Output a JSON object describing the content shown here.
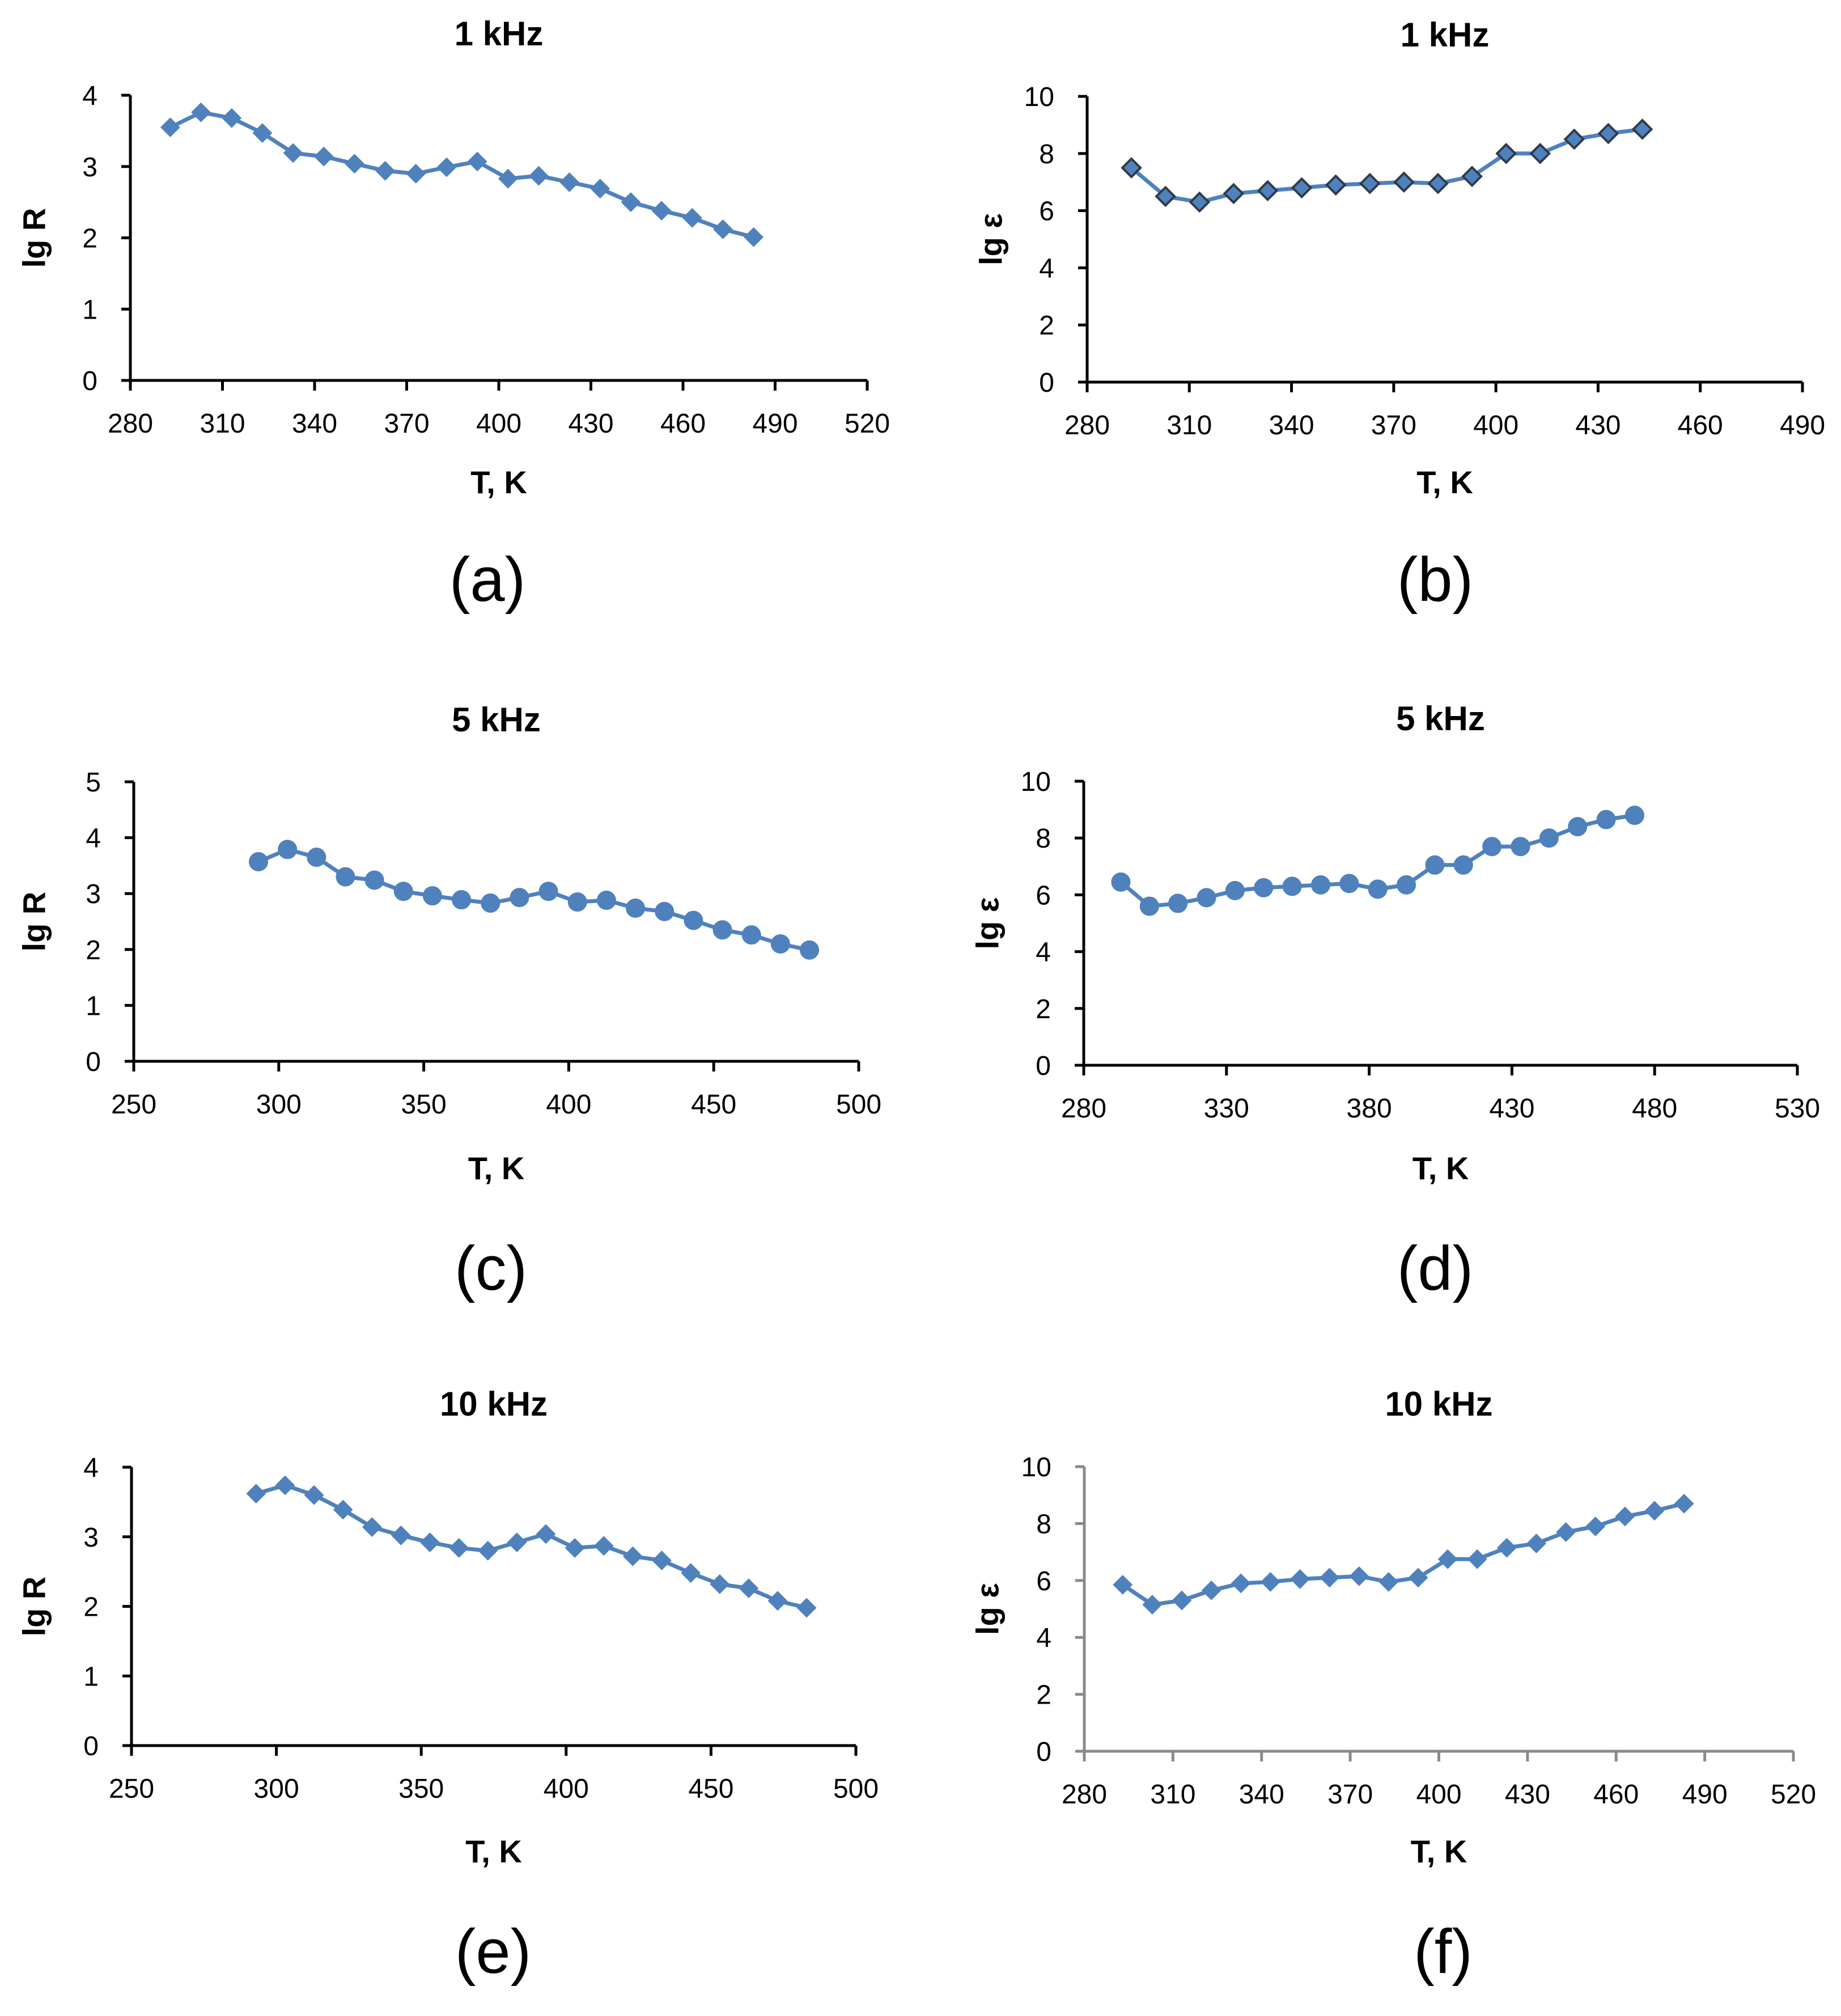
{
  "figure": {
    "series_color": "#4f81bd",
    "marker_outline_dark": "#2f3b4a"
  },
  "chart_data": [
    {
      "type": "line",
      "panel": "(a)",
      "title": "1 kHz",
      "xlabel": "T, K",
      "ylabel": "lg R",
      "xlim": [
        280,
        520
      ],
      "xticks": [
        280,
        310,
        340,
        370,
        400,
        430,
        460,
        490,
        520
      ],
      "ylim": [
        0,
        4
      ],
      "yticks": [
        0,
        1,
        2,
        3,
        4
      ],
      "marker": "diamond",
      "marker_outline": "series",
      "axis_style": "black",
      "series": [
        {
          "name": "lg R",
          "x": [
            293,
            303,
            313,
            323,
            333,
            343,
            353,
            363,
            373,
            383,
            393,
            403,
            413,
            423,
            433,
            443,
            453,
            463,
            473,
            483
          ],
          "y": [
            3.55,
            3.76,
            3.68,
            3.47,
            3.19,
            3.14,
            3.04,
            2.94,
            2.9,
            2.99,
            3.07,
            2.83,
            2.87,
            2.78,
            2.69,
            2.5,
            2.38,
            2.28,
            2.12,
            2.01
          ]
        }
      ]
    },
    {
      "type": "line",
      "panel": "(b)",
      "title": "1 kHz",
      "xlabel": "T, K",
      "ylabel": "lg ε",
      "xlim": [
        280,
        490
      ],
      "xticks": [
        280,
        310,
        340,
        370,
        400,
        430,
        460,
        490
      ],
      "ylim": [
        0,
        10
      ],
      "yticks": [
        0,
        2,
        4,
        6,
        8,
        10
      ],
      "marker": "diamond",
      "marker_outline": "dark",
      "axis_style": "black",
      "series": [
        {
          "name": "lg ε",
          "x": [
            293,
            303,
            313,
            323,
            333,
            343,
            353,
            363,
            373,
            383,
            393,
            403,
            413,
            423,
            433,
            443
          ],
          "y": [
            7.5,
            6.5,
            6.3,
            6.6,
            6.7,
            6.8,
            6.9,
            6.95,
            7.0,
            6.95,
            7.2,
            8.0,
            8.0,
            8.5,
            8.7,
            8.85
          ]
        }
      ]
    },
    {
      "type": "line",
      "panel": "(c)",
      "title": "5 kHz",
      "xlabel": "T, K",
      "ylabel": "lg R",
      "xlim": [
        250,
        500
      ],
      "xticks": [
        250,
        300,
        350,
        400,
        450,
        500
      ],
      "ylim": [
        0,
        5
      ],
      "yticks": [
        0,
        1,
        2,
        3,
        4,
        5
      ],
      "marker": "circle",
      "marker_outline": "series",
      "axis_style": "black",
      "series": [
        {
          "name": "lg R",
          "x": [
            293,
            303,
            313,
            323,
            333,
            343,
            353,
            363,
            373,
            383,
            393,
            403,
            413,
            423,
            433,
            443,
            453,
            463,
            473,
            483
          ],
          "y": [
            3.57,
            3.79,
            3.65,
            3.3,
            3.24,
            3.04,
            2.96,
            2.89,
            2.83,
            2.93,
            3.04,
            2.85,
            2.88,
            2.74,
            2.68,
            2.52,
            2.35,
            2.26,
            2.1,
            1.99
          ]
        }
      ]
    },
    {
      "type": "line",
      "panel": "(d)",
      "title": "5 kHz",
      "xlabel": "T, K",
      "ylabel": "lg ε",
      "xlim": [
        280,
        530
      ],
      "xticks": [
        280,
        330,
        380,
        430,
        480,
        530
      ],
      "ylim": [
        0,
        10
      ],
      "yticks": [
        0,
        2,
        4,
        6,
        8,
        10
      ],
      "marker": "circle",
      "marker_outline": "series",
      "axis_style": "black",
      "series": [
        {
          "name": "lg ε",
          "x": [
            293,
            303,
            313,
            323,
            333,
            343,
            353,
            363,
            373,
            383,
            393,
            403,
            413,
            423,
            433,
            443,
            453,
            463,
            473
          ],
          "y": [
            6.45,
            5.6,
            5.7,
            5.9,
            6.15,
            6.25,
            6.3,
            6.35,
            6.4,
            6.2,
            6.35,
            7.05,
            7.05,
            7.7,
            7.7,
            8.0,
            8.4,
            8.65,
            8.8
          ]
        }
      ]
    },
    {
      "type": "line",
      "panel": "(e)",
      "title": "10 kHz",
      "xlabel": "T, K",
      "ylabel": "lg R",
      "xlim": [
        250,
        500
      ],
      "xticks": [
        250,
        300,
        350,
        400,
        450,
        500
      ],
      "ylim": [
        0,
        4
      ],
      "yticks": [
        0,
        1,
        2,
        3,
        4
      ],
      "marker": "diamond",
      "marker_outline": "series",
      "axis_style": "black",
      "series": [
        {
          "name": "lg R",
          "x": [
            293,
            303,
            313,
            323,
            333,
            343,
            353,
            363,
            373,
            383,
            393,
            403,
            413,
            423,
            433,
            443,
            453,
            463,
            473,
            483
          ],
          "y": [
            3.62,
            3.74,
            3.6,
            3.39,
            3.14,
            3.02,
            2.92,
            2.84,
            2.8,
            2.92,
            3.04,
            2.84,
            2.87,
            2.72,
            2.66,
            2.48,
            2.32,
            2.26,
            2.08,
            1.98
          ]
        }
      ]
    },
    {
      "type": "line",
      "panel": "(f)",
      "title": "10 kHz",
      "xlabel": "T, K",
      "ylabel": "lg ε",
      "xlim": [
        280,
        520
      ],
      "xticks": [
        280,
        310,
        340,
        370,
        400,
        430,
        460,
        490,
        520
      ],
      "ylim": [
        0,
        10
      ],
      "yticks": [
        0,
        2,
        4,
        6,
        8,
        10
      ],
      "marker": "diamond",
      "marker_outline": "series",
      "axis_style": "gray",
      "series": [
        {
          "name": "lg ε",
          "x": [
            293,
            303,
            313,
            323,
            333,
            343,
            353,
            363,
            373,
            383,
            393,
            403,
            413,
            423,
            433,
            443,
            453,
            463,
            473,
            483
          ],
          "y": [
            5.85,
            5.15,
            5.3,
            5.65,
            5.9,
            5.95,
            6.05,
            6.1,
            6.15,
            5.95,
            6.1,
            6.75,
            6.75,
            7.15,
            7.3,
            7.7,
            7.9,
            8.25,
            8.45,
            8.7
          ]
        }
      ]
    }
  ]
}
